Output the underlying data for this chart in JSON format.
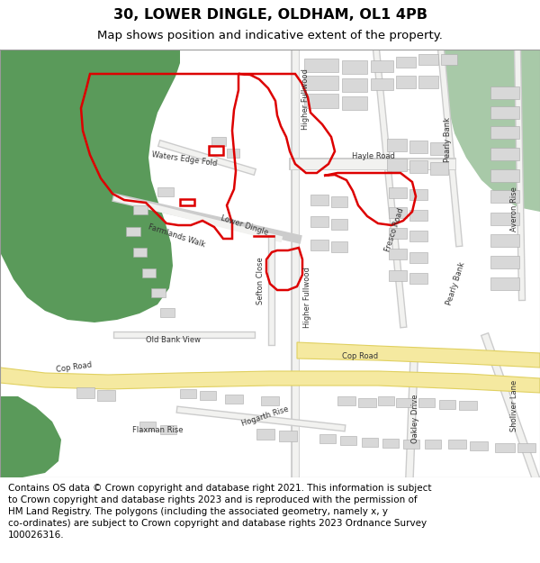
{
  "title": "30, LOWER DINGLE, OLDHAM, OL1 4PB",
  "subtitle": "Map shows position and indicative extent of the property.",
  "title_fontsize": 11.5,
  "subtitle_fontsize": 9.5,
  "footer_text": "Contains OS data © Crown copyright and database right 2021. This information is subject\nto Crown copyright and database rights 2023 and is reproduced with the permission of\nHM Land Registry. The polygons (including the associated geometry, namely x, y\nco-ordinates) are subject to Crown copyright and database rights 2023 Ordnance Survey\n100026316.",
  "footer_fontsize": 7.5,
  "map_bg": "#f2f2f0",
  "green_dark": "#5a9a5a",
  "green_light": "#a8c9a8",
  "road_fill": "#f5e9a0",
  "road_edge": "#e0d060",
  "building_fill": "#d8d8d8",
  "building_edge": "#aaaaaa",
  "red_color": "#dd0000",
  "red_lw": 1.8,
  "white": "#ffffff",
  "line_gray": "#888888"
}
